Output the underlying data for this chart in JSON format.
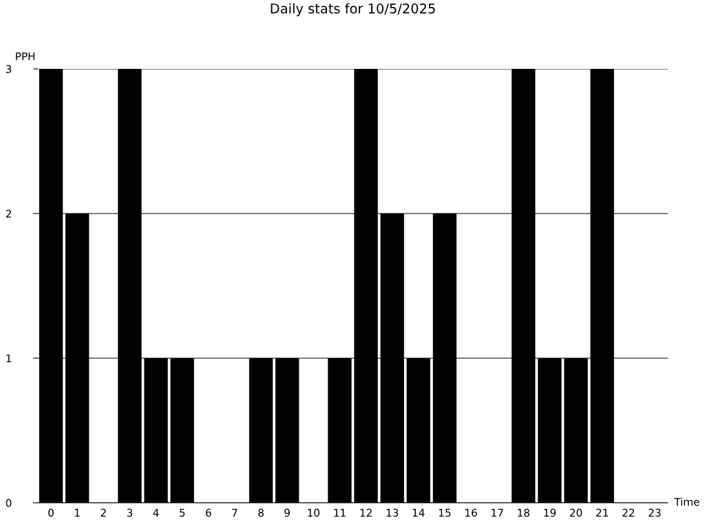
{
  "chart_data": {
    "type": "bar",
    "title": "Daily stats for 10/5/2025",
    "xlabel": "Time",
    "ylabel": "PPH",
    "categories": [
      "0",
      "1",
      "2",
      "3",
      "4",
      "5",
      "6",
      "7",
      "8",
      "9",
      "10",
      "11",
      "12",
      "13",
      "14",
      "15",
      "16",
      "17",
      "18",
      "19",
      "20",
      "21",
      "22",
      "23"
    ],
    "values": [
      3,
      2,
      0,
      3,
      1,
      1,
      0,
      0,
      1,
      1,
      0,
      1,
      3,
      2,
      1,
      2,
      0,
      0,
      3,
      1,
      1,
      3,
      0,
      0
    ],
    "color": "#000000",
    "ylim": [
      0,
      3
    ],
    "yticks": [
      0,
      1,
      2,
      3
    ],
    "grid": "y"
  }
}
